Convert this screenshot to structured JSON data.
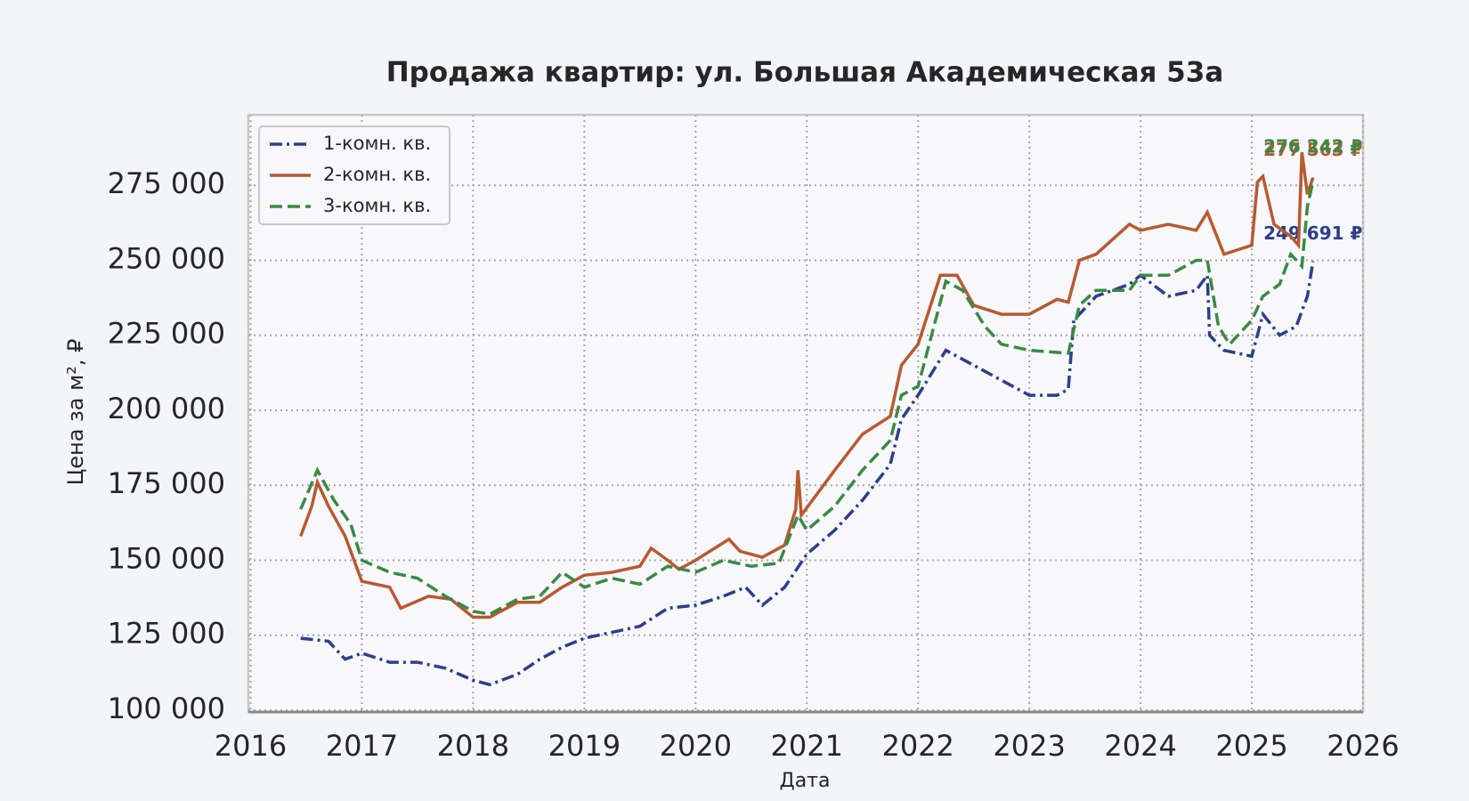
{
  "chart_data": {
    "type": "line",
    "title": "Продажа квартир: ул. Большая Академическая 53а",
    "x_label": "Дата",
    "y_label": "Цена за м², ₽",
    "xlim": [
      2015.98,
      2026
    ],
    "xticks": [
      2016,
      2017,
      2018,
      2019,
      2020,
      2021,
      2022,
      2023,
      2024,
      2025,
      2026
    ],
    "ylim": [
      99400,
      298500
    ],
    "yticks": [
      {
        "value": 100000,
        "label": "100 000"
      },
      {
        "value": 125000,
        "label": "125 000"
      },
      {
        "value": 150000,
        "label": "150 000"
      },
      {
        "value": 175000,
        "label": "175 000"
      },
      {
        "value": 200000,
        "label": "200 000"
      },
      {
        "value": 225000,
        "label": "225 000"
      },
      {
        "value": 250000,
        "label": "250 000"
      },
      {
        "value": 275000,
        "label": "275 000"
      }
    ],
    "grid": true,
    "legend": "upper left",
    "series": [
      {
        "name": "1-комн. кв.",
        "color": "#2b3f8c",
        "linestyle": "dashdot",
        "last_label": "249 691 ₽",
        "x": [
          2016.45,
          2016.7,
          2016.85,
          2017.0,
          2017.25,
          2017.5,
          2017.75,
          2018.0,
          2018.15,
          2018.4,
          2018.6,
          2018.8,
          2019.0,
          2019.25,
          2019.5,
          2019.75,
          2020.0,
          2020.25,
          2020.45,
          2020.6,
          2020.8,
          2021.0,
          2021.25,
          2021.5,
          2021.75,
          2021.85,
          2022.0,
          2022.25,
          2022.5,
          2022.75,
          2023.0,
          2023.25,
          2023.35,
          2023.4,
          2023.6,
          2023.9,
          2024.0,
          2024.25,
          2024.5,
          2024.6,
          2024.62,
          2024.75,
          2025.0,
          2025.1,
          2025.25,
          2025.4,
          2025.5,
          2025.55
        ],
        "values": [
          124000,
          123000,
          117000,
          119000,
          116000,
          116000,
          114000,
          110000,
          108500,
          112000,
          117000,
          121000,
          124000,
          126000,
          128000,
          134000,
          135000,
          138000,
          141000,
          135000,
          141000,
          152000,
          160000,
          170000,
          182000,
          197000,
          205000,
          220000,
          215000,
          210000,
          205000,
          205000,
          207000,
          230000,
          238000,
          242000,
          245000,
          238000,
          240000,
          245000,
          225000,
          220000,
          218000,
          232000,
          225000,
          228000,
          238000,
          249691
        ]
      },
      {
        "name": "2-комн. кв.",
        "color": "#b85a30",
        "linestyle": "solid",
        "last_label": "277 563 ₽",
        "x": [
          2016.45,
          2016.55,
          2016.6,
          2016.7,
          2016.85,
          2017.0,
          2017.25,
          2017.35,
          2017.6,
          2017.8,
          2018.0,
          2018.15,
          2018.4,
          2018.6,
          2018.8,
          2019.0,
          2019.25,
          2019.5,
          2019.6,
          2019.75,
          2019.85,
          2020.0,
          2020.3,
          2020.4,
          2020.6,
          2020.8,
          2020.9,
          2020.92,
          2020.95,
          2021.25,
          2021.5,
          2021.75,
          2021.85,
          2022.0,
          2022.2,
          2022.35,
          2022.5,
          2022.75,
          2023.0,
          2023.25,
          2023.35,
          2023.45,
          2023.6,
          2023.9,
          2024.0,
          2024.25,
          2024.5,
          2024.6,
          2024.75,
          2025.0,
          2025.05,
          2025.1,
          2025.2,
          2025.35,
          2025.42,
          2025.45,
          2025.5,
          2025.55
        ],
        "values": [
          158000,
          168000,
          176000,
          168000,
          158000,
          143000,
          141000,
          134000,
          138000,
          137000,
          131000,
          131000,
          136000,
          136000,
          141000,
          145000,
          146000,
          148000,
          154000,
          150000,
          147000,
          150000,
          157000,
          153000,
          151000,
          155000,
          167000,
          180000,
          165000,
          180000,
          192000,
          198000,
          215000,
          222000,
          245000,
          245000,
          235000,
          232000,
          232000,
          237000,
          236000,
          250000,
          252000,
          262000,
          260000,
          262000,
          260000,
          266000,
          252000,
          255000,
          276000,
          278000,
          262000,
          258000,
          255000,
          286000,
          272000,
          277563
        ]
      },
      {
        "name": "3-комн. кв.",
        "color": "#3a8a45",
        "linestyle": "dashed",
        "last_label": "276 242 ₽",
        "x": [
          2016.45,
          2016.6,
          2016.75,
          2016.9,
          2017.0,
          2017.25,
          2017.5,
          2017.75,
          2018.0,
          2018.15,
          2018.4,
          2018.6,
          2018.8,
          2019.0,
          2019.25,
          2019.5,
          2019.75,
          2020.0,
          2020.25,
          2020.5,
          2020.75,
          2020.92,
          2021.0,
          2021.25,
          2021.5,
          2021.75,
          2021.85,
          2022.0,
          2022.25,
          2022.4,
          2022.6,
          2022.75,
          2023.0,
          2023.35,
          2023.45,
          2023.6,
          2023.9,
          2024.0,
          2024.25,
          2024.5,
          2024.6,
          2024.7,
          2024.8,
          2025.0,
          2025.1,
          2025.25,
          2025.35,
          2025.45,
          2025.5,
          2025.55
        ],
        "values": [
          167000,
          180000,
          170000,
          162000,
          150000,
          146000,
          144000,
          138000,
          133000,
          132000,
          137000,
          138000,
          146000,
          141000,
          144000,
          142000,
          148000,
          146000,
          150000,
          148000,
          149000,
          165000,
          160000,
          168000,
          180000,
          190000,
          205000,
          208000,
          243000,
          240000,
          228000,
          222000,
          220000,
          219000,
          235000,
          240000,
          240000,
          245000,
          245000,
          250000,
          250000,
          228000,
          222000,
          230000,
          238000,
          242000,
          252000,
          248000,
          268000,
          276242
        ]
      }
    ]
  }
}
